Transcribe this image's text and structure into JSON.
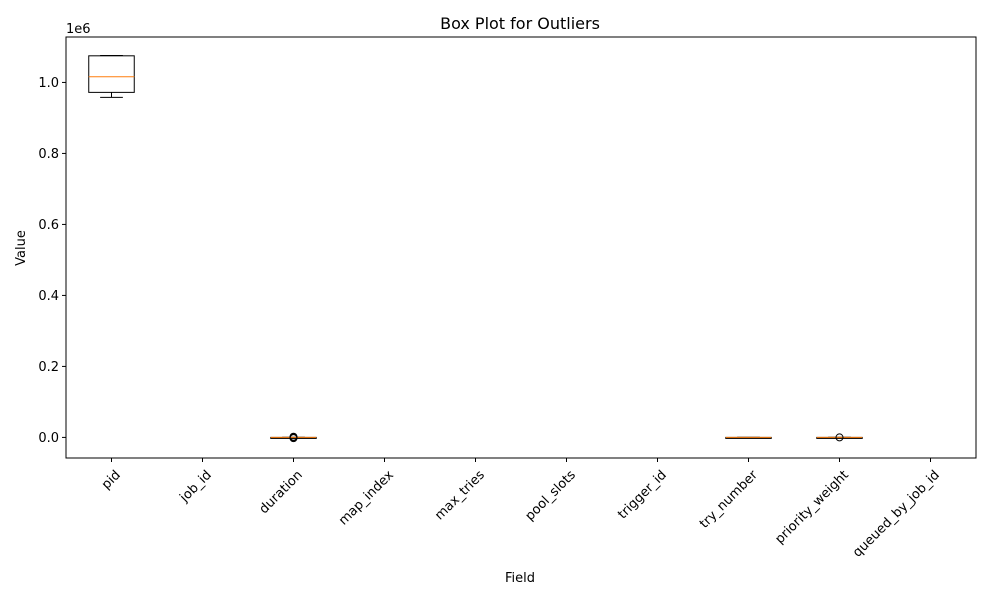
{
  "chart_data": {
    "type": "box",
    "title": "Box Plot for Outliers",
    "xlabel": "Field",
    "ylabel": "Value",
    "y_offset_label": "1e6",
    "ylim": [
      -58000,
      1128000
    ],
    "y_ticks": [
      {
        "value": 0,
        "label": "0.0"
      },
      {
        "value": 200000,
        "label": "0.2"
      },
      {
        "value": 400000,
        "label": "0.4"
      },
      {
        "value": 600000,
        "label": "0.6"
      },
      {
        "value": 800000,
        "label": "0.8"
      },
      {
        "value": 1000000,
        "label": "1.0"
      }
    ],
    "categories": [
      "pid",
      "job_id",
      "duration",
      "map_index",
      "max_tries",
      "pool_slots",
      "trigger_id",
      "try_number",
      "priority_weight",
      "queued_by_job_id"
    ],
    "grid": false,
    "boxes": [
      {
        "field": "pid",
        "whisker_low": 958000,
        "q1": 972000,
        "median": 1016000,
        "q3": 1075000,
        "whisker_high": 1076000,
        "outliers": []
      },
      {
        "field": "job_id",
        "empty": true
      },
      {
        "field": "duration",
        "whisker_low": 0,
        "q1": 0,
        "median": 0,
        "q3": 0,
        "whisker_high": 0,
        "outliers": [
          -2000,
          0,
          2000
        ]
      },
      {
        "field": "map_index",
        "empty": true
      },
      {
        "field": "max_tries",
        "empty": true
      },
      {
        "field": "pool_slots",
        "empty": true
      },
      {
        "field": "trigger_id",
        "empty": true
      },
      {
        "field": "try_number",
        "whisker_low": 0,
        "q1": 0,
        "median": 0,
        "q3": 0,
        "whisker_high": 0,
        "outliers": []
      },
      {
        "field": "priority_weight",
        "whisker_low": 0,
        "q1": 0,
        "median": 0,
        "q3": 0,
        "whisker_high": 0,
        "outliers": [
          0
        ]
      },
      {
        "field": "queued_by_job_id",
        "empty": true
      }
    ],
    "colors": {
      "box": "#000000",
      "median": "#ff7f0e",
      "axes": "#000000"
    }
  }
}
